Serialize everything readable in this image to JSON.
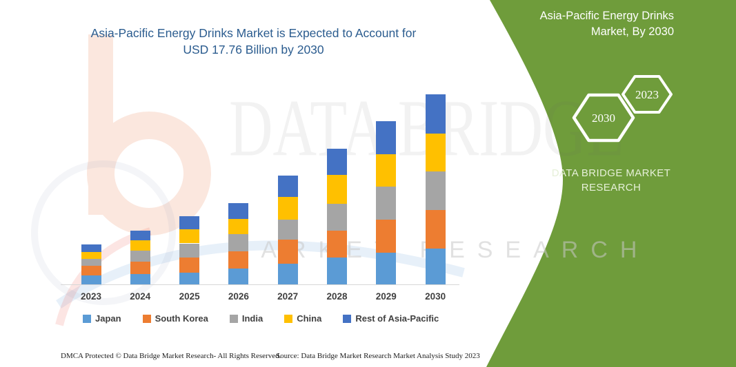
{
  "title": {
    "line1": "Asia-Pacific Energy Drinks Market is Expected to Account for",
    "line2": "USD 17.76 Billion by 2030",
    "color": "#2B5C8F"
  },
  "watermark": {
    "line1": "DATA BRIDGE",
    "line2": "MARKET RESEARCH"
  },
  "right_panel": {
    "heading_line1": "Asia-Pacific Energy Drinks",
    "heading_line2": "Market, By 2030",
    "hexagon_back_label": "2023",
    "hexagon_front_label": "2030",
    "brand_line1": "DATA BRIDGE MARKET",
    "brand_line2": "RESEARCH",
    "bg_color": "#6F9C3B",
    "text_color": "#FFFFFF"
  },
  "footer": {
    "dmca": "DMCA Protected © Data Bridge Market Research-  All Rights Reserved.",
    "source": "Source: Data Bridge Market Research  Market Analysis Study 2023"
  },
  "chart_data": {
    "type": "bar",
    "subtype": "stacked-column",
    "title": "Asia-Pacific Energy Drinks Market is Expected to Account for USD 17.76 Billion by 2030",
    "unit": "USD Billion",
    "categories": [
      "2023",
      "2024",
      "2025",
      "2026",
      "2027",
      "2028",
      "2029",
      "2030"
    ],
    "series": [
      {
        "name": "Japan",
        "color": "#5B9BD5",
        "values": [
          0.82,
          0.99,
          1.08,
          1.48,
          1.93,
          2.51,
          2.94,
          3.37
        ]
      },
      {
        "name": "South Korea",
        "color": "#ED7D31",
        "values": [
          0.9,
          1.11,
          1.42,
          1.61,
          2.25,
          2.53,
          3.11,
          3.61
        ]
      },
      {
        "name": "India",
        "color": "#A5A5A5",
        "values": [
          0.64,
          1.03,
          1.33,
          1.61,
          1.89,
          2.51,
          3.11,
          3.59
        ]
      },
      {
        "name": "China",
        "color": "#FFC000",
        "values": [
          0.64,
          0.99,
          1.33,
          1.42,
          2.08,
          2.69,
          3.01,
          3.54
        ]
      },
      {
        "name": "Rest of Asia-Pacific",
        "color": "#4472C4",
        "values": [
          0.75,
          0.88,
          1.2,
          1.48,
          2.04,
          2.47,
          3.07,
          3.65
        ]
      }
    ],
    "totals": [
      3.75,
      5.0,
      6.36,
      7.6,
      10.19,
      12.71,
      15.24,
      17.76
    ],
    "xlabel": "",
    "ylabel": "",
    "ylim": [
      0,
      18.3
    ],
    "grid": false,
    "legend_position": "bottom",
    "axis_line_color": "#D6D6D6"
  }
}
